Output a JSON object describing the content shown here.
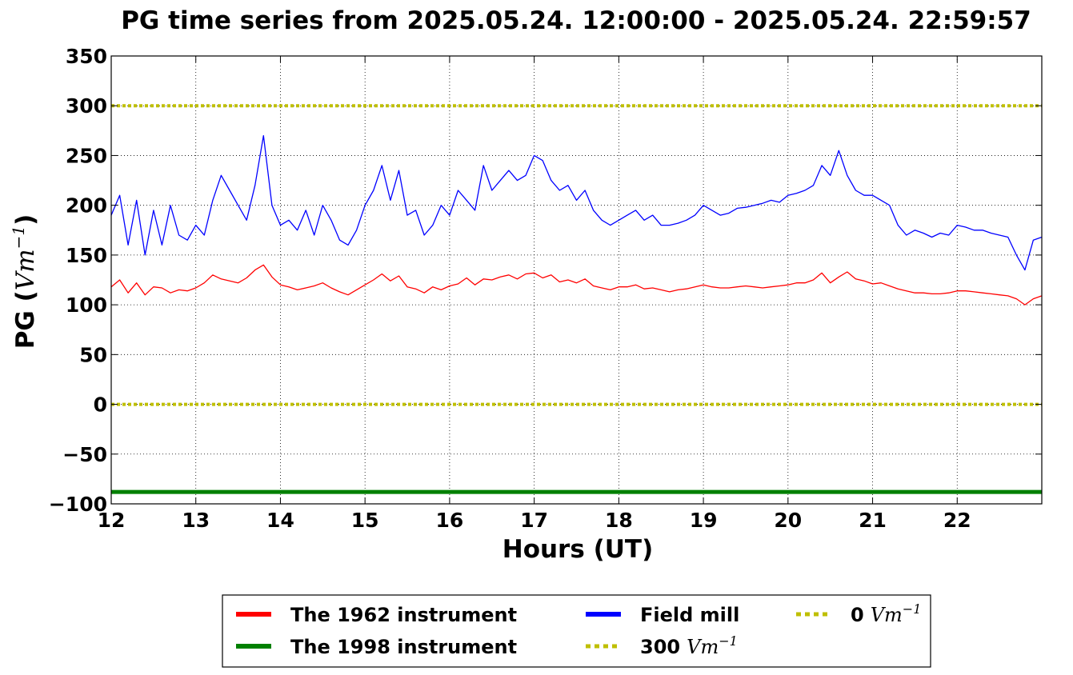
{
  "chart_data": {
    "type": "line",
    "title": "PG time series from 2025.05.24. 12:00:00 - 2025.05.24. 22:59:57",
    "xlabel": "Hours (UT)",
    "ylabel": "PG (",
    "ylabel_unit": "Vm",
    "ylabel_exp": "−1",
    "ylabel_close": ")",
    "xlim": [
      12,
      23
    ],
    "ylim": [
      -100,
      350
    ],
    "xticks": [
      12,
      13,
      14,
      15,
      16,
      17,
      18,
      19,
      20,
      21,
      22
    ],
    "xtick_labels": [
      "12",
      "13",
      "14",
      "15",
      "16",
      "17",
      "18",
      "19",
      "20",
      "21",
      "22"
    ],
    "yticks": [
      -100,
      -50,
      0,
      50,
      100,
      150,
      200,
      250,
      300,
      350
    ],
    "ytick_labels": [
      "−100",
      "−50",
      "0",
      "50",
      "100",
      "150",
      "200",
      "250",
      "300",
      "350"
    ],
    "grid": true,
    "legend_position": "below",
    "series": [
      {
        "name": "The 1962 instrument",
        "color": "#ff0000",
        "style": "solid",
        "x": [
          12.0,
          12.1,
          12.2,
          12.3,
          12.4,
          12.5,
          12.6,
          12.7,
          12.8,
          12.9,
          13.0,
          13.1,
          13.2,
          13.3,
          13.4,
          13.5,
          13.6,
          13.7,
          13.8,
          13.9,
          14.0,
          14.1,
          14.2,
          14.3,
          14.4,
          14.5,
          14.6,
          14.7,
          14.8,
          14.9,
          15.0,
          15.1,
          15.2,
          15.3,
          15.4,
          15.5,
          15.6,
          15.7,
          15.8,
          15.9,
          16.0,
          16.1,
          16.2,
          16.3,
          16.4,
          16.5,
          16.6,
          16.7,
          16.8,
          16.9,
          17.0,
          17.1,
          17.2,
          17.3,
          17.4,
          17.5,
          17.6,
          17.7,
          17.8,
          17.9,
          18.0,
          18.1,
          18.2,
          18.3,
          18.4,
          18.5,
          18.6,
          18.7,
          18.8,
          18.9,
          19.0,
          19.1,
          19.2,
          19.3,
          19.4,
          19.5,
          19.6,
          19.7,
          19.8,
          19.9,
          20.0,
          20.1,
          20.2,
          20.3,
          20.4,
          20.5,
          20.6,
          20.7,
          20.8,
          20.9,
          21.0,
          21.1,
          21.2,
          21.3,
          21.4,
          21.5,
          21.6,
          21.7,
          21.8,
          21.9,
          22.0,
          22.1,
          22.2,
          22.3,
          22.4,
          22.5,
          22.6,
          22.7,
          22.8,
          22.9,
          23.0
        ],
        "values": [
          118,
          125,
          112,
          122,
          110,
          118,
          117,
          112,
          115,
          114,
          117,
          122,
          130,
          126,
          124,
          122,
          127,
          135,
          140,
          128,
          120,
          118,
          115,
          117,
          119,
          122,
          117,
          113,
          110,
          115,
          120,
          125,
          131,
          124,
          129,
          118,
          116,
          112,
          118,
          115,
          119,
          121,
          127,
          120,
          126,
          125,
          128,
          130,
          126,
          131,
          132,
          127,
          130,
          123,
          125,
          122,
          126,
          119,
          117,
          115,
          118,
          118,
          120,
          116,
          117,
          115,
          113,
          115,
          116,
          118,
          120,
          118,
          117,
          117,
          118,
          119,
          118,
          117,
          118,
          119,
          120,
          122,
          122,
          125,
          132,
          122,
          128,
          133,
          126,
          124,
          121,
          122,
          119,
          116,
          114,
          112,
          112,
          111,
          111,
          112,
          114,
          114,
          113,
          112,
          111,
          110,
          109,
          106,
          100,
          106,
          109
        ]
      },
      {
        "name": "The 1998 instrument",
        "color": "#008000",
        "style": "solid",
        "x": [
          12.0,
          23.0
        ],
        "values": [
          -88,
          -88
        ]
      },
      {
        "name": "Field mill",
        "color": "#0000ff",
        "style": "solid",
        "x": [
          12.0,
          12.1,
          12.2,
          12.3,
          12.4,
          12.5,
          12.6,
          12.7,
          12.8,
          12.9,
          13.0,
          13.1,
          13.2,
          13.3,
          13.4,
          13.5,
          13.6,
          13.7,
          13.8,
          13.9,
          14.0,
          14.1,
          14.2,
          14.3,
          14.4,
          14.5,
          14.6,
          14.7,
          14.8,
          14.9,
          15.0,
          15.1,
          15.2,
          15.3,
          15.4,
          15.5,
          15.6,
          15.7,
          15.8,
          15.9,
          16.0,
          16.1,
          16.2,
          16.3,
          16.4,
          16.5,
          16.6,
          16.7,
          16.8,
          16.9,
          17.0,
          17.1,
          17.2,
          17.3,
          17.4,
          17.5,
          17.6,
          17.7,
          17.8,
          17.9,
          18.0,
          18.1,
          18.2,
          18.3,
          18.4,
          18.5,
          18.6,
          18.7,
          18.8,
          18.9,
          19.0,
          19.1,
          19.2,
          19.3,
          19.4,
          19.5,
          19.6,
          19.7,
          19.8,
          19.9,
          20.0,
          20.1,
          20.2,
          20.3,
          20.4,
          20.5,
          20.6,
          20.7,
          20.8,
          20.9,
          21.0,
          21.1,
          21.2,
          21.3,
          21.4,
          21.5,
          21.6,
          21.7,
          21.8,
          21.9,
          22.0,
          22.1,
          22.2,
          22.3,
          22.4,
          22.5,
          22.6,
          22.7,
          22.8,
          22.9,
          23.0
        ],
        "values": [
          190,
          210,
          160,
          205,
          150,
          195,
          160,
          200,
          170,
          165,
          180,
          170,
          205,
          230,
          215,
          200,
          185,
          220,
          270,
          200,
          180,
          185,
          175,
          195,
          170,
          200,
          185,
          165,
          160,
          175,
          200,
          215,
          240,
          205,
          235,
          190,
          195,
          170,
          180,
          200,
          190,
          215,
          205,
          195,
          240,
          215,
          225,
          235,
          225,
          230,
          250,
          245,
          225,
          215,
          220,
          205,
          215,
          195,
          185,
          180,
          185,
          190,
          195,
          185,
          190,
          180,
          180,
          182,
          185,
          190,
          200,
          195,
          190,
          192,
          197,
          198,
          200,
          202,
          205,
          203,
          210,
          212,
          215,
          220,
          240,
          230,
          255,
          230,
          215,
          210,
          210,
          205,
          200,
          180,
          170,
          175,
          172,
          168,
          172,
          170,
          180,
          178,
          175,
          175,
          172,
          170,
          168,
          150,
          135,
          165,
          168
        ]
      },
      {
        "name": "300",
        "name_unit": "Vm",
        "name_exp": "−1",
        "color": "#bfbf00",
        "style": "dotted",
        "x": [
          12.0,
          23.0
        ],
        "values": [
          300,
          300
        ]
      },
      {
        "name": "0",
        "name_unit": "Vm",
        "name_exp": "−1",
        "color": "#bfbf00",
        "style": "dotted",
        "x": [
          12.0,
          23.0
        ],
        "values": [
          0,
          0
        ]
      }
    ]
  }
}
